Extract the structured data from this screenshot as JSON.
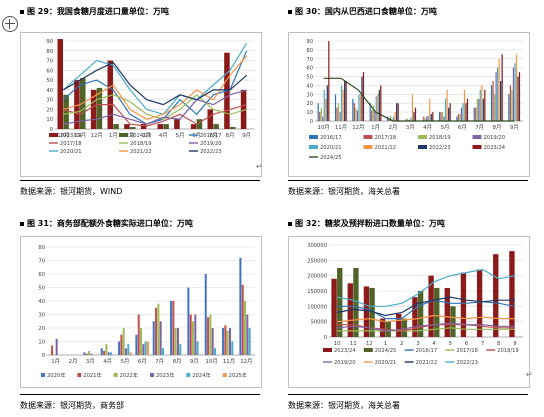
{
  "captions": {
    "c29": "图 29：我国食糖月度进口量单位：万吨",
    "c30": "图 30：国内从巴西进口食糖单位：万吨",
    "c31": "图 31：商务部配额外食糖实际进口单位：万吨",
    "c32": "图 32：糖浆及预拌粉进口数量单位：万吨"
  },
  "sources": {
    "s29": "数据来源：银河期货，WIND",
    "s30": "数据来源：银河期货，海关总署",
    "s31": "数据来源：银河期货，商务部",
    "s32": "数据来源：银河期货，海关总署"
  },
  "chart_data": [
    {
      "id": "c29",
      "type": "bar+line",
      "categories": [
        "10月",
        "11月",
        "12月",
        "1月",
        "2月",
        "3月",
        "4月",
        "5月",
        "6月",
        "7月",
        "8月",
        "9月"
      ],
      "ylim": [
        0,
        90
      ],
      "yticks": [
        0,
        10,
        20,
        30,
        40,
        50,
        60,
        70,
        80,
        90
      ],
      "bars": [
        {
          "name": "2023/24",
          "color": "#8b1a1a",
          "values": [
            92,
            50,
            40,
            70,
            5,
            5,
            5,
            10,
            5,
            20,
            78,
            40
          ]
        },
        {
          "name": "2024/25",
          "color": "#4f6228",
          "values": [
            35,
            52,
            42,
            5,
            2,
            0,
            5,
            0,
            10,
            5,
            2,
            0
          ]
        }
      ],
      "lines": [
        {
          "name": "2016/17",
          "color": "#2e75b6",
          "values": [
            30,
            45,
            50,
            40,
            15,
            5,
            10,
            30,
            15,
            35,
            40,
            80
          ]
        },
        {
          "name": "2017/18",
          "color": "#c0504d",
          "values": [
            20,
            15,
            25,
            25,
            5,
            3,
            8,
            15,
            5,
            15,
            20,
            25
          ]
        },
        {
          "name": "2018/19",
          "color": "#9bbb59",
          "values": [
            15,
            18,
            30,
            35,
            28,
            15,
            10,
            20,
            35,
            20,
            15,
            20
          ]
        },
        {
          "name": "2019/20",
          "color": "#8064a2",
          "values": [
            5,
            8,
            10,
            15,
            10,
            5,
            12,
            10,
            30,
            25,
            35,
            40
          ]
        },
        {
          "name": "2020/21",
          "color": "#4bacc6",
          "values": [
            40,
            55,
            70,
            65,
            40,
            20,
            15,
            35,
            30,
            45,
            60,
            88
          ]
        },
        {
          "name": "2021/22",
          "color": "#f79646",
          "values": [
            20,
            25,
            35,
            45,
            20,
            10,
            15,
            25,
            40,
            30,
            55,
            75
          ]
        },
        {
          "name": "2022/23",
          "color": "#1f3864",
          "values": [
            40,
            50,
            60,
            68,
            45,
            30,
            25,
            35,
            30,
            40,
            40,
            55
          ]
        }
      ]
    },
    {
      "id": "c30",
      "type": "bar+line",
      "categories": [
        "10月",
        "11月",
        "12月",
        "1月",
        "2月",
        "3月",
        "4月",
        "5月",
        "6月",
        "7月",
        "8月",
        "9月"
      ],
      "ylim": [
        0,
        90
      ],
      "yticks": [
        0,
        10,
        20,
        30,
        40,
        50,
        60,
        70,
        80,
        90
      ],
      "bars": [
        {
          "name": "2016/17",
          "color": "#2e75b6",
          "values": [
            20,
            30,
            25,
            20,
            5,
            0,
            0,
            10,
            5,
            15,
            40,
            30
          ]
        },
        {
          "name": "2017/18",
          "color": "#c0504d",
          "values": [
            10,
            15,
            20,
            12,
            3,
            2,
            5,
            10,
            8,
            15,
            45,
            40
          ]
        },
        {
          "name": "2018/19",
          "color": "#9bbb59",
          "values": [
            15,
            20,
            15,
            18,
            6,
            3,
            3,
            10,
            8,
            25,
            30,
            35
          ]
        },
        {
          "name": "2019/20",
          "color": "#8064a2",
          "values": [
            5,
            10,
            12,
            10,
            2,
            1,
            5,
            5,
            15,
            25,
            55,
            60
          ]
        },
        {
          "name": "2020/21",
          "color": "#4bacc6",
          "values": [
            35,
            40,
            30,
            28,
            5,
            4,
            6,
            25,
            20,
            35,
            60,
            65
          ]
        },
        {
          "name": "2021/22",
          "color": "#f79646",
          "values": [
            25,
            35,
            30,
            30,
            10,
            30,
            25,
            35,
            35,
            40,
            70,
            75
          ]
        },
        {
          "name": "2022/23",
          "color": "#1f3864",
          "values": [
            40,
            45,
            50,
            35,
            20,
            10,
            8,
            15,
            20,
            25,
            45,
            50
          ]
        },
        {
          "name": "2023/24",
          "color": "#8b1a1a",
          "values": [
            90,
            45,
            55,
            40,
            20,
            15,
            10,
            20,
            25,
            35,
            75,
            55
          ]
        }
      ],
      "lines": [
        {
          "name": "2024/25",
          "color": "#2d4a1e",
          "values": [
            48,
            48,
            35,
            10,
            0,
            0,
            0,
            0,
            0,
            0,
            0,
            0
          ]
        }
      ]
    },
    {
      "id": "c31",
      "type": "bar",
      "categories": [
        "1月",
        "2月",
        "3月",
        "4月",
        "5月",
        "6月",
        "7月",
        "8月",
        "9月",
        "10月",
        "11月",
        "12月"
      ],
      "ylim": [
        0,
        80
      ],
      "yticks": [
        0,
        10,
        20,
        30,
        40,
        50,
        60,
        70,
        80
      ],
      "series": [
        {
          "name": "2020年",
          "color": "#4472c4",
          "values": [
            0,
            0,
            2,
            5,
            10,
            15,
            25,
            40,
            50,
            60,
            20,
            72
          ]
        },
        {
          "name": "2021年",
          "color": "#c0504d",
          "values": [
            7,
            0,
            1,
            3,
            15,
            30,
            35,
            40,
            30,
            28,
            22,
            52
          ]
        },
        {
          "name": "2022年",
          "color": "#9bbb59",
          "values": [
            0,
            0,
            3,
            8,
            20,
            20,
            38,
            20,
            25,
            30,
            18,
            40
          ]
        },
        {
          "name": "2023年",
          "color": "#8064a2",
          "values": [
            12,
            0,
            1,
            2,
            5,
            8,
            25,
            20,
            30,
            20,
            20,
            30
          ]
        },
        {
          "name": "2024年",
          "color": "#4bacc6",
          "values": [
            0,
            0,
            0,
            2,
            8,
            10,
            5,
            8,
            10,
            5,
            10,
            20
          ]
        },
        {
          "name": "2025年",
          "color": "#f79646",
          "values": [
            0,
            0,
            0,
            0,
            2,
            10,
            0,
            0,
            0,
            0,
            0,
            0
          ]
        }
      ]
    },
    {
      "id": "c32",
      "type": "bar+line",
      "categories": [
        "10",
        "11",
        "12",
        "1",
        "2",
        "3",
        "4",
        "5",
        "6",
        "7",
        "8",
        "9"
      ],
      "ylim": [
        0,
        300000
      ],
      "yticks": [
        0,
        50000,
        100000,
        150000,
        200000,
        250000,
        300000
      ],
      "bars": [
        {
          "name": "2023/24",
          "color": "#8b1a1a",
          "values": [
            190000,
            175000,
            165000,
            60000,
            75000,
            130000,
            200000,
            160000,
            210000,
            220000,
            270000,
            280000
          ]
        },
        {
          "name": "2024/25",
          "color": "#4f6228",
          "values": [
            225000,
            225000,
            160000,
            50000,
            60000,
            150000,
            160000,
            100000,
            0,
            0,
            0,
            0
          ]
        }
      ],
      "lines": [
        {
          "name": "2016/17",
          "color": "#2e75b6",
          "values": [
            100000,
            100000,
            90000,
            60000,
            60000,
            100000,
            120000,
            110000,
            110000,
            115000,
            110000,
            100000
          ]
        },
        {
          "name": "2017/18",
          "color": "#9bbb59",
          "values": [
            20000,
            20000,
            20000,
            20000,
            20000,
            20000,
            25000,
            30000,
            25000,
            25000,
            25000,
            25000
          ]
        },
        {
          "name": "2018/19",
          "color": "#c0504d",
          "values": [
            40000,
            40000,
            30000,
            25000,
            20000,
            30000,
            40000,
            40000,
            40000,
            35000,
            30000,
            30000
          ]
        },
        {
          "name": "2019/20",
          "color": "#8064a2",
          "values": [
            30000,
            35000,
            30000,
            20000,
            25000,
            35000,
            40000,
            45000,
            40000,
            40000,
            35000,
            35000
          ]
        },
        {
          "name": "2020/21",
          "color": "#f79646",
          "values": [
            50000,
            55000,
            60000,
            50000,
            55000,
            60000,
            70000,
            65000,
            60000,
            65000,
            60000,
            60000
          ]
        },
        {
          "name": "2021/22",
          "color": "#1f3864",
          "values": [
            80000,
            90000,
            85000,
            70000,
            80000,
            110000,
            120000,
            130000,
            120000,
            115000,
            120000,
            120000
          ]
        },
        {
          "name": "2022/23",
          "color": "#4bacc6",
          "values": [
            130000,
            120000,
            100000,
            100000,
            110000,
            140000,
            180000,
            200000,
            210000,
            220000,
            190000,
            200000
          ]
        }
      ]
    }
  ]
}
